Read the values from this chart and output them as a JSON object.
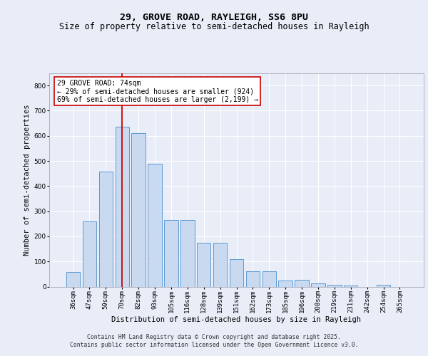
{
  "title1": "29, GROVE ROAD, RAYLEIGH, SS6 8PU",
  "title2": "Size of property relative to semi-detached houses in Rayleigh",
  "xlabel": "Distribution of semi-detached houses by size in Rayleigh",
  "ylabel": "Number of semi-detached properties",
  "categories": [
    "36sqm",
    "47sqm",
    "59sqm",
    "70sqm",
    "82sqm",
    "93sqm",
    "105sqm",
    "116sqm",
    "128sqm",
    "139sqm",
    "151sqm",
    "162sqm",
    "173sqm",
    "185sqm",
    "196sqm",
    "208sqm",
    "219sqm",
    "231sqm",
    "242sqm",
    "254sqm",
    "265sqm"
  ],
  "values": [
    57,
    258,
    457,
    635,
    610,
    490,
    265,
    265,
    175,
    175,
    108,
    62,
    62,
    23,
    27,
    12,
    8,
    5,
    0,
    8,
    0
  ],
  "bar_color": "#c9d9f0",
  "bar_edge_color": "#5b9bd5",
  "property_bin_index": 3,
  "vline_color": "#cc0000",
  "annotation_text": "29 GROVE ROAD: 74sqm\n← 29% of semi-detached houses are smaller (924)\n69% of semi-detached houses are larger (2,199) →",
  "annotation_box_color": "#ffffff",
  "annotation_box_edge": "#cc0000",
  "footer1": "Contains HM Land Registry data © Crown copyright and database right 2025.",
  "footer2": "Contains public sector information licensed under the Open Government Licence v3.0.",
  "ylim": [
    0,
    850
  ],
  "yticks": [
    0,
    100,
    200,
    300,
    400,
    500,
    600,
    700,
    800
  ],
  "bg_color": "#e8edf8",
  "plot_bg_color": "#e8edf8",
  "grid_color": "#ffffff",
  "title1_fontsize": 9.5,
  "title2_fontsize": 8.5,
  "ylabel_fontsize": 7.5,
  "xlabel_fontsize": 7.5,
  "tick_fontsize": 6.5,
  "annot_fontsize": 7.0,
  "footer_fontsize": 5.8
}
